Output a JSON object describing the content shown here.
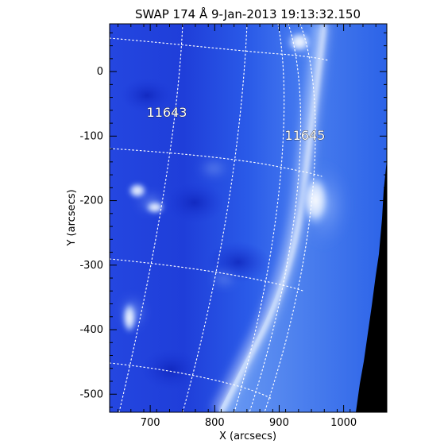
{
  "title": "SWAP 174 Å  9-Jan-2013 19:13:32.150",
  "axes": {
    "x_label": "X (arcsecs)",
    "y_label": "Y (arcsecs)",
    "x_ticks": [
      700,
      800,
      900,
      1000
    ],
    "y_ticks": [
      0,
      -100,
      -200,
      -300,
      -400,
      -500
    ],
    "x_range": [
      637,
      1067
    ],
    "y_range": [
      -528,
      74
    ]
  },
  "active_regions": [
    {
      "label": "11643",
      "x": 717,
      "y": -63
    },
    {
      "label": "11645",
      "x": 937,
      "y": -97
    }
  ],
  "colors": {
    "disk_dark": "#1a36d8",
    "disk_mid": "#2a5ae8",
    "limb": "#cfe1ff",
    "corona": "#6a9cf4",
    "space": "#000000",
    "grid": "#ffffff"
  }
}
